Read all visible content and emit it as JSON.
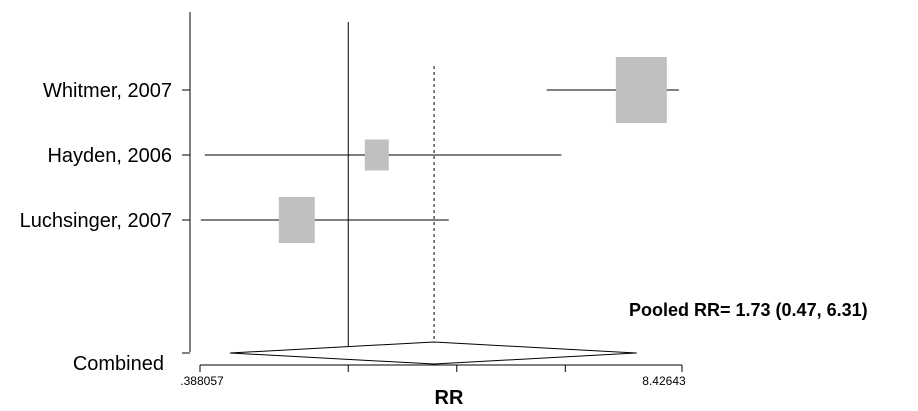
{
  "chart_data": {
    "type": "forest",
    "xlabel": "RR",
    "x_scale": "log",
    "xlim": [
      0.388057,
      8.42643
    ],
    "x_tick_labels": [
      ".388057",
      "8.42643"
    ],
    "reference_line": 1,
    "pooled_line": 1.73,
    "studies": [
      {
        "label": "Whitmer, 2007",
        "rr": 6.5,
        "ci": [
          3.55,
          8.26
        ]
      },
      {
        "label": "Hayden, 2006",
        "rr": 1.2,
        "ci": [
          0.4,
          3.9
        ]
      },
      {
        "label": "Luchsinger, 2007",
        "rr": 0.72,
        "ci": [
          0.39,
          1.9
        ]
      }
    ],
    "combined": {
      "label": "Combined",
      "rr": 1.73,
      "ci": [
        0.47,
        6.31
      ]
    },
    "annotation": "Pooled RR= 1.73 (0.47, 6.31)"
  }
}
